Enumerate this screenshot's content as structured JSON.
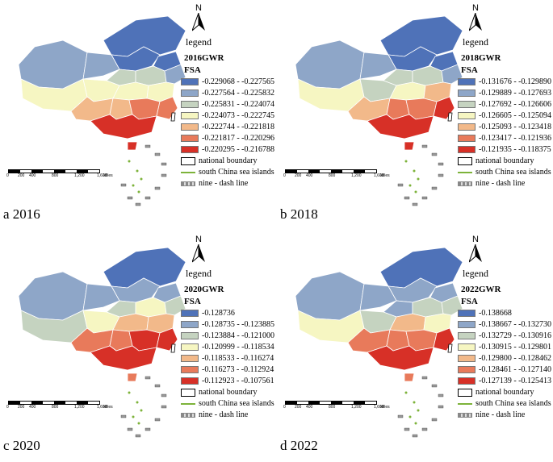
{
  "panels": [
    {
      "caption": "a 2016",
      "legend_title": "legend",
      "model_label": "2016GWR",
      "variable": "FSA",
      "classes": [
        {
          "range": "-0.229068 - -0.227565",
          "color": "#4f72b8"
        },
        {
          "range": "-0.227564 - -0.225832",
          "color": "#8ea6c8"
        },
        {
          "range": "-0.225831 - -0.224074",
          "color": "#c5d3c0"
        },
        {
          "range": "-0.224073 - -0.222745",
          "color": "#f6f6c2"
        },
        {
          "range": "-0.222744 - -0.221818",
          "color": "#f2b98a"
        },
        {
          "range": "-0.221817 - -0.220296",
          "color": "#e87a5b"
        },
        {
          "range": "-0.220295 - -0.216788",
          "color": "#d73027"
        }
      ],
      "region_classes": [
        0,
        0,
        0,
        1,
        1,
        2,
        3,
        3,
        2,
        1,
        3,
        3,
        4,
        4,
        5,
        5,
        6,
        6
      ],
      "boundary_label": "national boundary",
      "islands_label": "south China sea islands",
      "dash_label": "nine - dash line"
    },
    {
      "caption": "b 2018",
      "legend_title": "legend",
      "model_label": "2018GWR",
      "variable": "FSA",
      "classes": [
        {
          "range": "-0.131676 - -0.129890",
          "color": "#4f72b8"
        },
        {
          "range": "-0.129889 - -0.127693",
          "color": "#8ea6c8"
        },
        {
          "range": "-0.127692 - -0.126606",
          "color": "#c5d3c0"
        },
        {
          "range": "-0.126605 - -0.125094",
          "color": "#f6f6c2"
        },
        {
          "range": "-0.125093 - -0.123418",
          "color": "#f2b98a"
        },
        {
          "range": "-0.123417 - -0.121936",
          "color": "#e87a5b"
        },
        {
          "range": "-0.121935 - -0.118375",
          "color": "#d73027"
        }
      ],
      "region_classes": [
        0,
        0,
        0,
        1,
        1,
        2,
        3,
        2,
        2,
        1,
        3,
        4,
        4,
        5,
        5,
        6,
        6,
        6
      ],
      "boundary_label": "national boundary",
      "islands_label": "south China sea islands",
      "dash_label": "nine - dash line"
    },
    {
      "caption": "c 2020",
      "legend_title": "legend",
      "model_label": "2020GWR",
      "variable": "FSA",
      "classes": [
        {
          "range": "-0.128736",
          "color": "#4f72b8"
        },
        {
          "range": "-0.128735 - -0.123885",
          "color": "#8ea6c8"
        },
        {
          "range": "-0.123884 - -0.121000",
          "color": "#c5d3c0"
        },
        {
          "range": "-0.120999 - -0.118534",
          "color": "#f6f6c2"
        },
        {
          "range": "-0.118533 - -0.116274",
          "color": "#f2b98a"
        },
        {
          "range": "-0.116273 - -0.112924",
          "color": "#e87a5b"
        },
        {
          "range": "-0.112923 - -0.107561",
          "color": "#d73027"
        }
      ],
      "region_classes": [
        0,
        1,
        1,
        1,
        1,
        2,
        2,
        3,
        3,
        2,
        4,
        4,
        5,
        5,
        6,
        6,
        6,
        5
      ],
      "boundary_label": "national boundary",
      "islands_label": "south China sea islands",
      "dash_label": "nine - dash line"
    },
    {
      "caption": "d 2022",
      "legend_title": "legend",
      "model_label": "2022GWR",
      "variable": "FSA",
      "classes": [
        {
          "range": "-0.138668",
          "color": "#4f72b8"
        },
        {
          "range": "-0.138667 - -0.132730",
          "color": "#8ea6c8"
        },
        {
          "range": "-0.132729 - -0.130916",
          "color": "#c5d3c0"
        },
        {
          "range": "-0.130915 - -0.129801",
          "color": "#f6f6c2"
        },
        {
          "range": "-0.129800 - -0.128462",
          "color": "#f2b98a"
        },
        {
          "range": "-0.128461 - -0.127140",
          "color": "#e87a5b"
        },
        {
          "range": "-0.127139 - -0.125413",
          "color": "#d73027"
        }
      ],
      "region_classes": [
        0,
        1,
        1,
        1,
        1,
        1,
        3,
        2,
        2,
        2,
        4,
        3,
        5,
        5,
        5,
        6,
        6,
        5
      ],
      "boundary_label": "national boundary",
      "islands_label": "south China sea islands",
      "dash_label": "nine - dash line"
    }
  ],
  "north_label": "N",
  "scale_labels": [
    "0",
    "200",
    "400",
    "800",
    "1,200",
    "1,600"
  ],
  "scale_unit": "Miles"
}
